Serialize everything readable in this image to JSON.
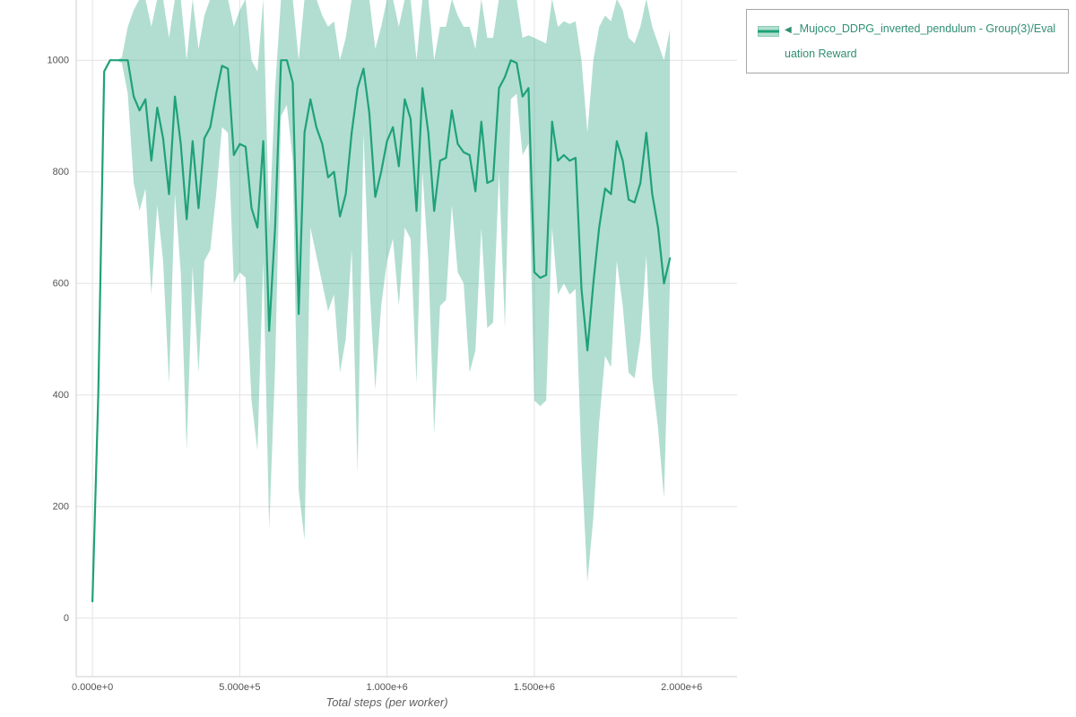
{
  "legend": {
    "collapse_icon": "◀",
    "series_label": "_Mujoco_DDPG_inverted_pendulum - Group(3)/Evaluation Reward"
  },
  "colors": {
    "line": "#1fa179",
    "band": "rgba(31,161,121,0.35)",
    "band_edge": "#8ccbb4",
    "grid": "#e3e3e3",
    "axis": "#cfcfcf",
    "tick_text": "#535353",
    "legend_text": "#2f8f72"
  },
  "chart_data": {
    "type": "line",
    "title": "",
    "xlabel": "Total steps (per worker)",
    "ylabel": "",
    "xlim": [
      -55000,
      2188000
    ],
    "ylim": [
      -105,
      1108
    ],
    "grid": true,
    "legend_position": "top-right",
    "x_ticks": [
      0,
      500000,
      1000000,
      1500000,
      2000000
    ],
    "x_tick_labels": [
      "0.000e+0",
      "5.000e+5",
      "1.000e+6",
      "1.500e+6",
      "2.000e+6"
    ],
    "y_ticks": [
      0,
      200,
      400,
      600,
      800,
      1000
    ],
    "y_tick_labels": [
      "0",
      "200",
      "400",
      "600",
      "800",
      "1000"
    ],
    "series": [
      {
        "name": "_Mujoco_DDPG_inverted_pendulum - Group(3)/Evaluation Reward",
        "x": [
          0,
          20000,
          40000,
          60000,
          80000,
          100000,
          120000,
          140000,
          160000,
          180000,
          200000,
          220000,
          240000,
          260000,
          280000,
          300000,
          320000,
          340000,
          360000,
          380000,
          400000,
          420000,
          440000,
          460000,
          480000,
          500000,
          520000,
          540000,
          560000,
          580000,
          600000,
          620000,
          640000,
          660000,
          680000,
          700000,
          720000,
          740000,
          760000,
          780000,
          800000,
          820000,
          840000,
          860000,
          880000,
          900000,
          920000,
          940000,
          960000,
          980000,
          1000000,
          1020000,
          1040000,
          1060000,
          1080000,
          1100000,
          1120000,
          1140000,
          1160000,
          1180000,
          1200000,
          1220000,
          1240000,
          1260000,
          1280000,
          1300000,
          1320000,
          1340000,
          1360000,
          1380000,
          1400000,
          1420000,
          1440000,
          1460000,
          1480000,
          1500000,
          1520000,
          1540000,
          1560000,
          1580000,
          1600000,
          1620000,
          1640000,
          1660000,
          1680000,
          1700000,
          1720000,
          1740000,
          1760000,
          1780000,
          1800000,
          1820000,
          1840000,
          1860000,
          1880000,
          1900000,
          1920000,
          1940000,
          1960000
        ],
        "mean": [
          30,
          400,
          980,
          1000,
          1000,
          1000,
          1000,
          935,
          910,
          930,
          820,
          915,
          860,
          760,
          935,
          850,
          715,
          855,
          735,
          860,
          880,
          940,
          990,
          985,
          830,
          850,
          845,
          735,
          700,
          855,
          515,
          700,
          1000,
          1000,
          960,
          545,
          870,
          930,
          880,
          850,
          790,
          800,
          720,
          760,
          870,
          950,
          985,
          905,
          755,
          800,
          855,
          880,
          810,
          930,
          895,
          730,
          950,
          870,
          730,
          820,
          825,
          910,
          850,
          835,
          830,
          765,
          890,
          780,
          785,
          950,
          970,
          1000,
          995,
          935,
          950,
          620,
          610,
          615,
          890,
          820,
          830,
          820,
          825,
          590,
          480,
          600,
          700,
          770,
          760,
          855,
          820,
          750,
          745,
          780,
          870,
          760,
          700,
          600,
          645
        ],
        "upper": [
          30,
          400,
          980,
          1000,
          1000,
          1005,
          1060,
          1090,
          1110,
          1110,
          1060,
          1110,
          1110,
          1040,
          1110,
          1110,
          1000,
          1110,
          1020,
          1080,
          1110,
          1110,
          1110,
          1110,
          1060,
          1090,
          1110,
          1000,
          980,
          1110,
          700,
          950,
          1110,
          1110,
          1110,
          1000,
          1110,
          1110,
          1110,
          1080,
          1060,
          1070,
          1000,
          1040,
          1110,
          1110,
          1110,
          1110,
          1020,
          1060,
          1110,
          1110,
          1060,
          1110,
          1110,
          1000,
          1110,
          1110,
          1000,
          1060,
          1060,
          1110,
          1080,
          1060,
          1060,
          1020,
          1110,
          1040,
          1040,
          1110,
          1110,
          1110,
          1110,
          1040,
          1045,
          1040,
          1035,
          1030,
          1110,
          1060,
          1070,
          1065,
          1070,
          1000,
          870,
          1000,
          1060,
          1080,
          1070,
          1110,
          1090,
          1040,
          1030,
          1060,
          1110,
          1060,
          1030,
          1000,
          1055
        ],
        "lower": [
          30,
          400,
          980,
          1000,
          1000,
          995,
          940,
          780,
          730,
          770,
          580,
          740,
          640,
          420,
          760,
          620,
          300,
          630,
          440,
          640,
          660,
          760,
          880,
          870,
          600,
          620,
          610,
          390,
          300,
          640,
          160,
          450,
          900,
          920,
          820,
          230,
          140,
          700,
          650,
          600,
          550,
          580,
          440,
          500,
          660,
          260,
          870,
          600,
          410,
          560,
          640,
          680,
          560,
          700,
          680,
          420,
          800,
          640,
          330,
          560,
          570,
          740,
          620,
          600,
          440,
          480,
          700,
          520,
          530,
          800,
          520,
          930,
          940,
          830,
          850,
          390,
          380,
          390,
          700,
          580,
          600,
          580,
          590,
          280,
          65,
          180,
          350,
          470,
          450,
          640,
          560,
          440,
          430,
          500,
          650,
          430,
          340,
          215,
          600
        ]
      }
    ]
  }
}
